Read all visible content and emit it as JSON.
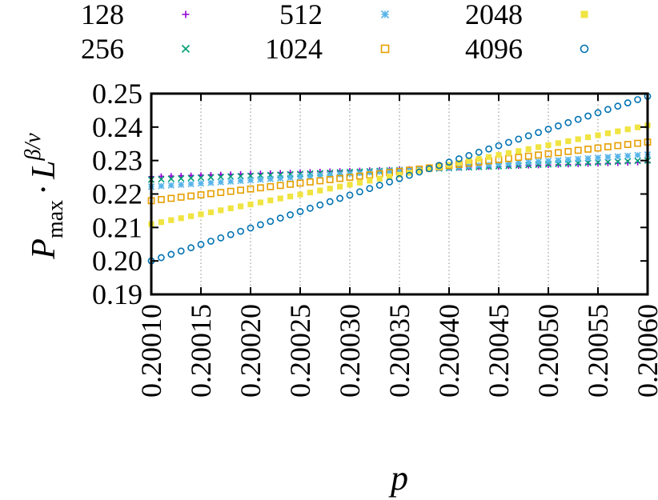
{
  "chart_data": {
    "type": "scatter",
    "title": "",
    "xlabel": "p",
    "ylabel": {
      "main": "P",
      "sub": "max",
      "dot": "·",
      "base": "L",
      "sup": "β/ν"
    },
    "xlim": [
      0.2001,
      0.2006
    ],
    "ylim": [
      0.19,
      0.25
    ],
    "xticks": [
      "0.20010",
      "0.20015",
      "0.20020",
      "0.20025",
      "0.20030",
      "0.20035",
      "0.20040",
      "0.20045",
      "0.20050",
      "0.20055",
      "0.20060"
    ],
    "yticks": [
      "0.19",
      "0.20",
      "0.21",
      "0.22",
      "0.23",
      "0.24",
      "0.25"
    ],
    "grid": "vertical-dotted",
    "legend_position": "top",
    "x_start": 0.2001,
    "x_step": 1e-05,
    "n_points": 51,
    "series": [
      {
        "name": "128",
        "marker": "plus",
        "color": "#9400d3",
        "y_start": 0.2252,
        "y_end": 0.2295
      },
      {
        "name": "256",
        "marker": "cross",
        "color": "#009e73",
        "y_start": 0.2243,
        "y_end": 0.23
      },
      {
        "name": "512",
        "marker": "star",
        "color": "#56b4e9",
        "y_start": 0.2222,
        "y_end": 0.2318
      },
      {
        "name": "1024",
        "marker": "square-open",
        "color": "#e69f00",
        "y_start": 0.218,
        "y_end": 0.2355
      },
      {
        "name": "2048",
        "marker": "square-filled",
        "color": "#f0e442",
        "y_start": 0.211,
        "y_end": 0.2405
      },
      {
        "name": "4096",
        "marker": "circle-open",
        "color": "#0072b2",
        "y_start": 0.2,
        "y_end": 0.2492
      }
    ]
  }
}
